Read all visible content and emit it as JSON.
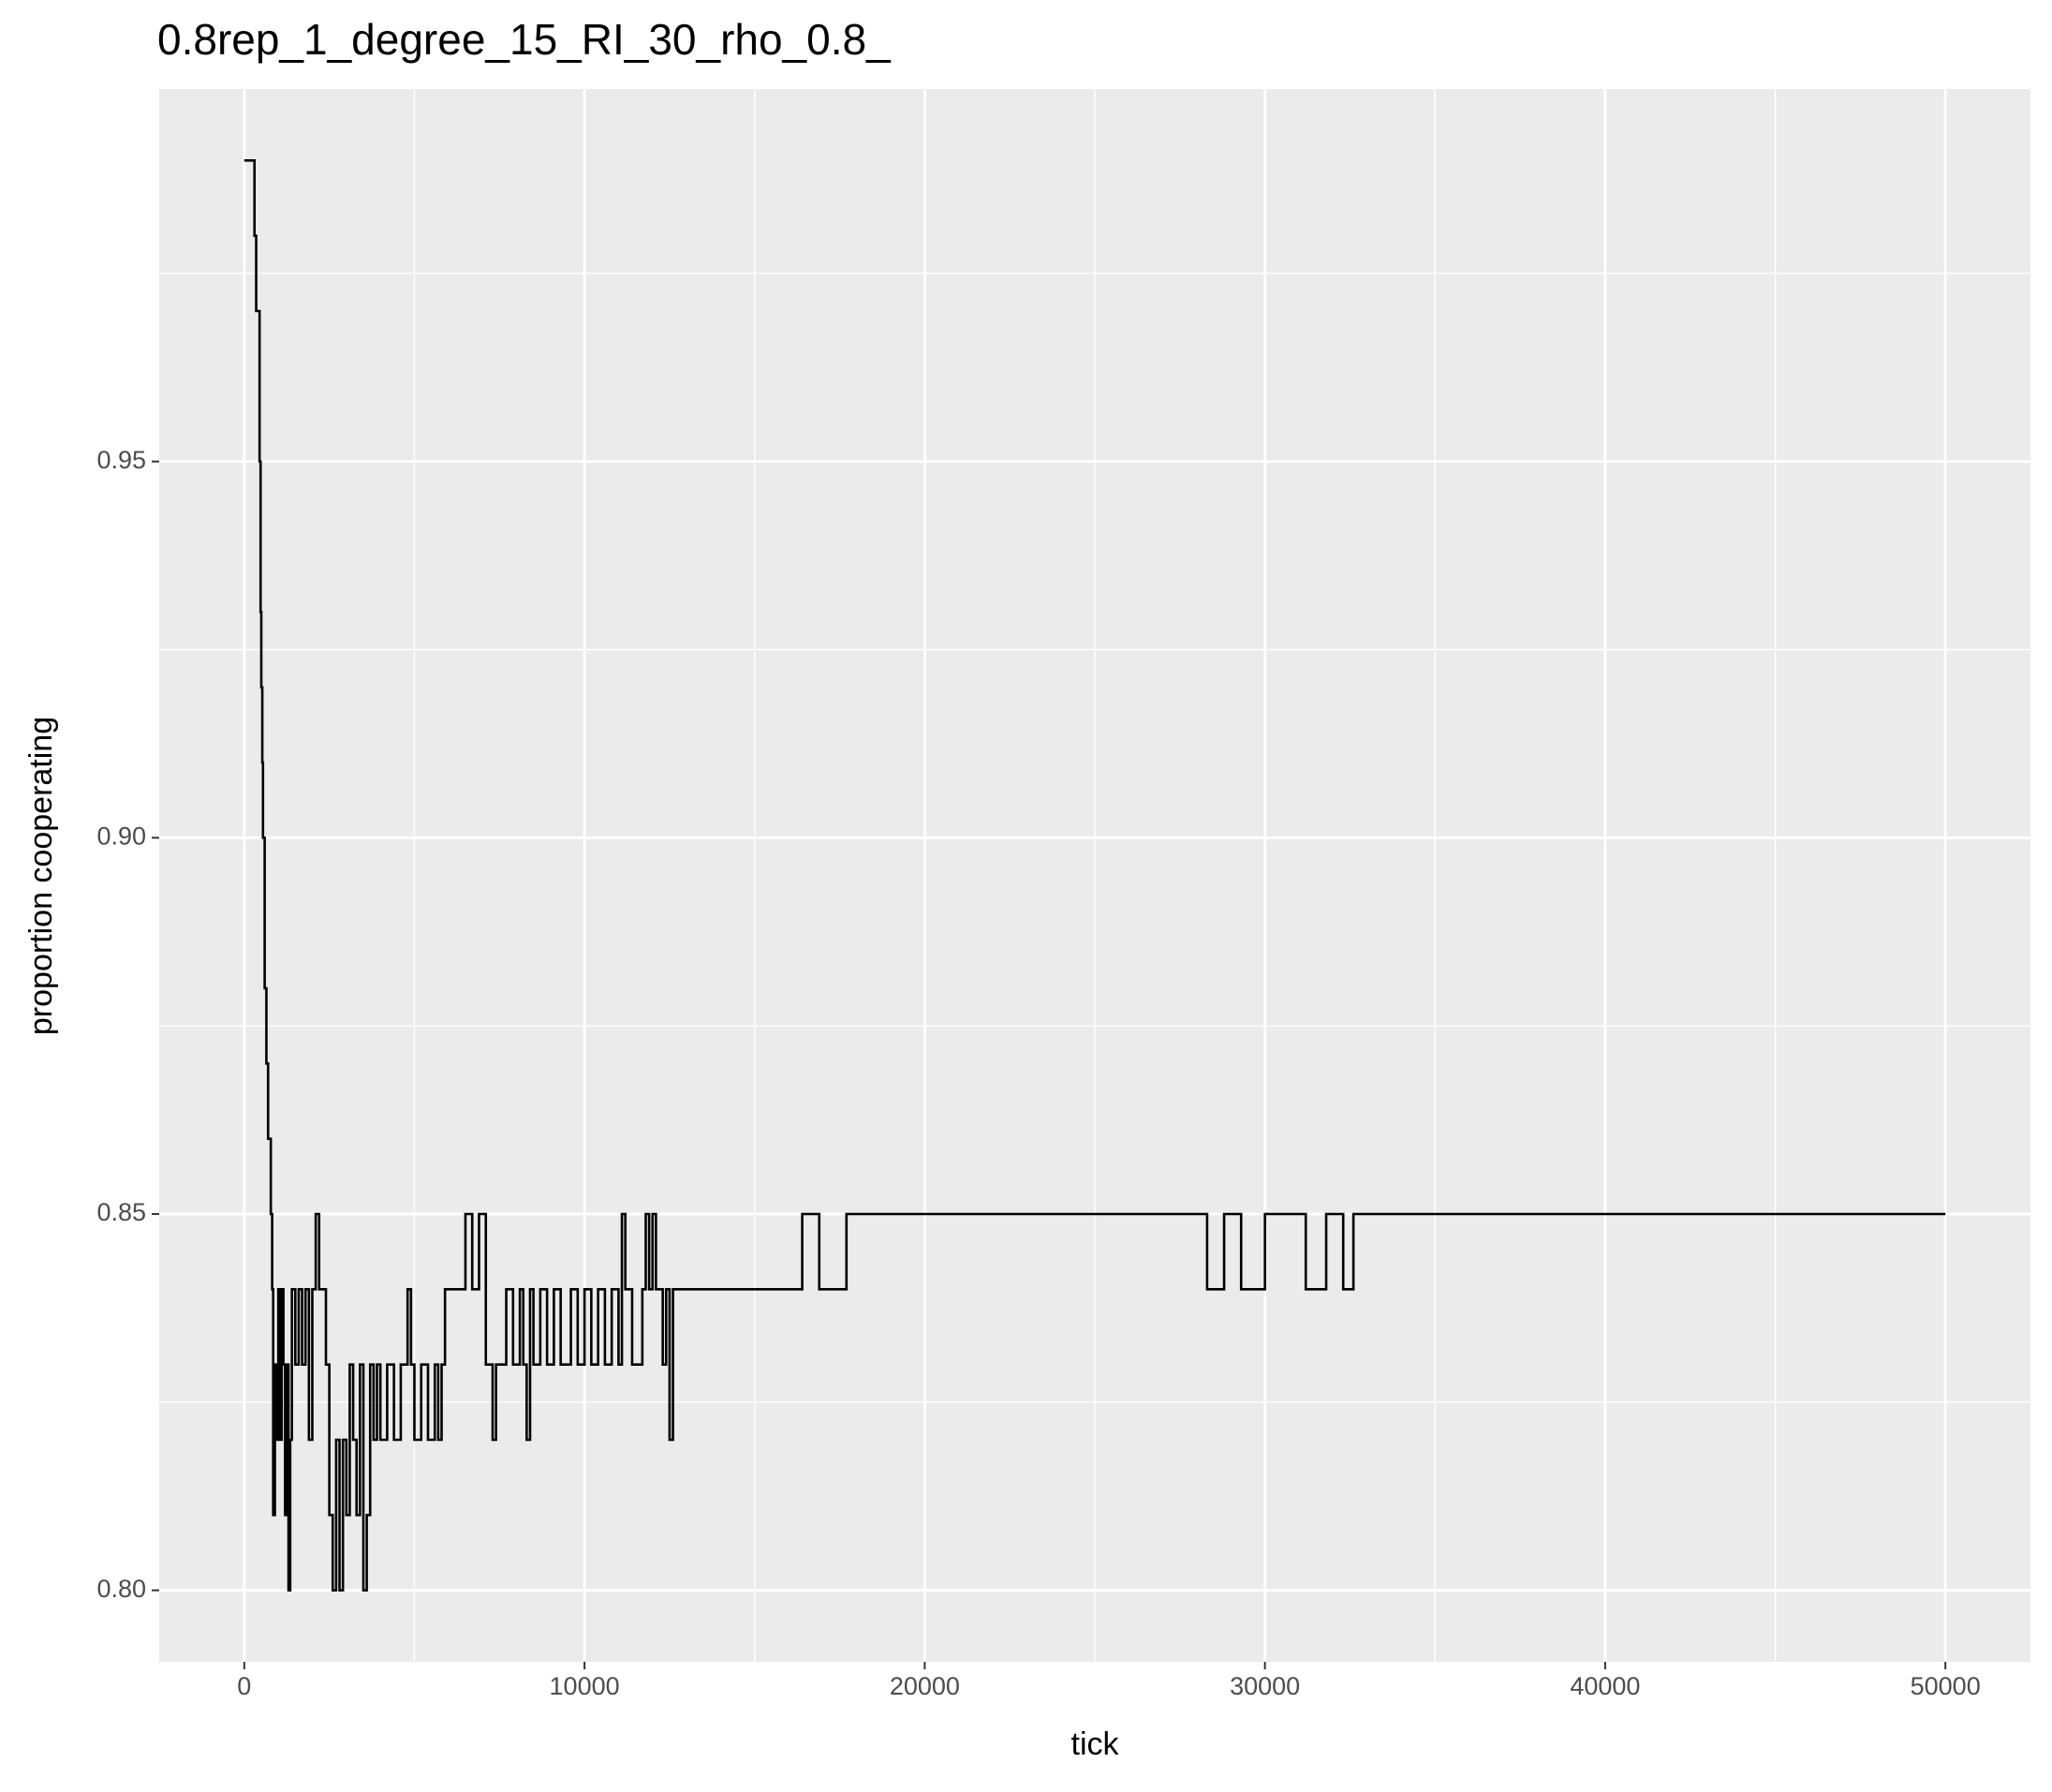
{
  "chart_data": {
    "type": "line",
    "step": true,
    "title": "0.8rep_1_degree_15_RI_30_rho_0.8_",
    "xlabel": "tick",
    "ylabel": "proportion cooperating",
    "color": "#000000",
    "background": "#ebebeb",
    "grid": true,
    "xlim": [
      -2500,
      52500
    ],
    "ylim": [
      0.7905,
      0.9995
    ],
    "xticks": [
      0,
      10000,
      20000,
      30000,
      40000,
      50000
    ],
    "yticks": [
      {
        "value": 0.8,
        "label": "0.80"
      },
      0.85,
      {
        "value": 0.9,
        "label": "0.90"
      },
      0.95
    ],
    "x_minor_grid": [
      5000,
      15000,
      25000,
      35000,
      45000
    ],
    "y_minor_grid": [
      0.825,
      0.875,
      0.925,
      0.975
    ],
    "x": [
      0,
      300,
      350,
      400,
      450,
      480,
      500,
      530,
      550,
      600,
      650,
      700,
      780,
      820,
      850,
      900,
      950,
      1000,
      1050,
      1100,
      1150,
      1200,
      1250,
      1300,
      1350,
      1400,
      1500,
      1600,
      1700,
      1800,
      1900,
      2000,
      2100,
      2200,
      2400,
      2500,
      2600,
      2700,
      2800,
      2900,
      3000,
      3100,
      3200,
      3300,
      3400,
      3500,
      3600,
      3700,
      3800,
      3900,
      4000,
      4200,
      4400,
      4600,
      4800,
      4900,
      5000,
      5200,
      5400,
      5600,
      5700,
      5800,
      5900,
      6200,
      6500,
      6700,
      6900,
      7100,
      7300,
      7400,
      7700,
      7900,
      8100,
      8200,
      8300,
      8400,
      8500,
      8700,
      8900,
      9100,
      9300,
      9600,
      9800,
      10000,
      10200,
      10400,
      10600,
      10800,
      11000,
      11100,
      11200,
      11400,
      11700,
      11800,
      11900,
      12000,
      12100,
      12300,
      12400,
      12500,
      12600,
      16400,
      16900,
      17700,
      28300,
      28800,
      29300,
      30000,
      31200,
      31800,
      32300,
      32600,
      50000
    ],
    "values": [
      0.99,
      0.98,
      0.97,
      0.97,
      0.95,
      0.93,
      0.92,
      0.91,
      0.9,
      0.88,
      0.87,
      0.86,
      0.85,
      0.84,
      0.81,
      0.83,
      0.82,
      0.84,
      0.82,
      0.84,
      0.83,
      0.81,
      0.83,
      0.8,
      0.82,
      0.84,
      0.83,
      0.84,
      0.83,
      0.84,
      0.82,
      0.84,
      0.85,
      0.84,
      0.83,
      0.81,
      0.8,
      0.82,
      0.8,
      0.82,
      0.81,
      0.83,
      0.82,
      0.81,
      0.83,
      0.8,
      0.81,
      0.83,
      0.82,
      0.83,
      0.82,
      0.83,
      0.82,
      0.83,
      0.84,
      0.83,
      0.82,
      0.83,
      0.82,
      0.83,
      0.82,
      0.83,
      0.84,
      0.84,
      0.85,
      0.84,
      0.85,
      0.83,
      0.82,
      0.83,
      0.84,
      0.83,
      0.84,
      0.83,
      0.82,
      0.84,
      0.83,
      0.84,
      0.83,
      0.84,
      0.83,
      0.84,
      0.83,
      0.84,
      0.83,
      0.84,
      0.83,
      0.84,
      0.83,
      0.85,
      0.84,
      0.83,
      0.84,
      0.85,
      0.84,
      0.85,
      0.84,
      0.83,
      0.84,
      0.82,
      0.84,
      0.85,
      0.84,
      0.85,
      0.84,
      0.85,
      0.84,
      0.85,
      0.84,
      0.85,
      0.84,
      0.85,
      0.85
    ]
  }
}
